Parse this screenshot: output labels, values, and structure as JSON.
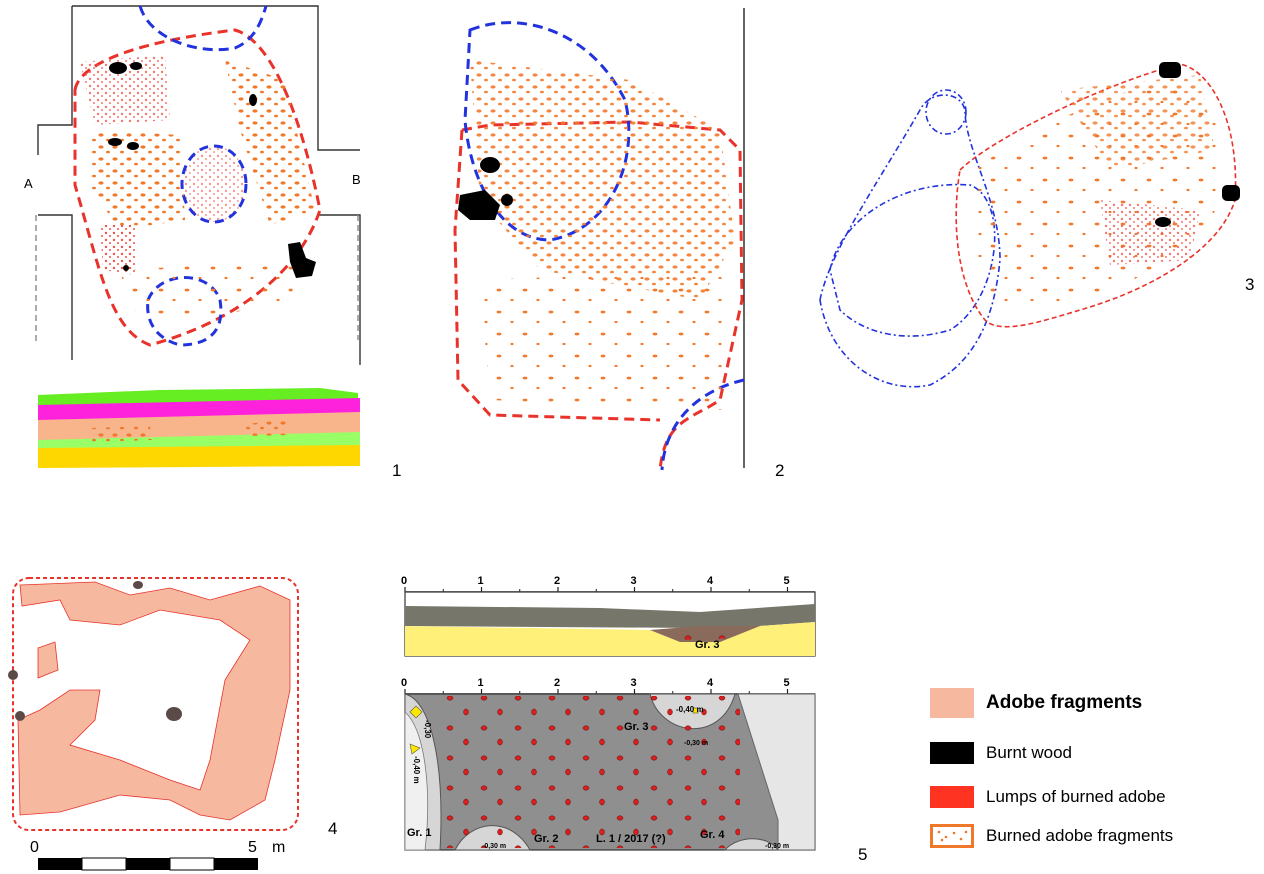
{
  "panels": {
    "p1": {
      "number": "1",
      "section_a": "A",
      "section_b": "B"
    },
    "p2": {
      "number": "2"
    },
    "p3": {
      "number": "3"
    },
    "p4": {
      "number": "4",
      "scale_start": "0",
      "scale_end": "5",
      "scale_unit": "m"
    },
    "p5": {
      "number": "5",
      "ruler_ticks": [
        "0",
        "1",
        "2",
        "3",
        "4",
        "5"
      ],
      "top_section_label": "Gr. 3",
      "plan_labels": {
        "gr1": "Gr. 1",
        "gr2": "Gr. 2",
        "gr3": "Gr. 3",
        "gr4": "Gr. 4",
        "layer": "L. 1 / 2017 (?)",
        "depth_gr3": "-0,40 m",
        "depth_gr3b": "-0,30 m",
        "depth_gr1a": "-0,30",
        "depth_gr1b": "-0,40 m",
        "depth_gr2": "-0,30 m",
        "depth_gr4": "-0,30 m"
      }
    }
  },
  "legend": {
    "items": [
      {
        "label": "Adobe fragments",
        "swatch": "#F7B8A0",
        "style": "bold"
      },
      {
        "label": "Burnt wood",
        "swatch": "#000000",
        "style": "normal"
      },
      {
        "label": "Lumps of burned adobe",
        "swatch": "#FF3322",
        "style": "normal"
      },
      {
        "label": "Burned adobe fragments",
        "swatch": "#F0782A",
        "style": "dotted"
      }
    ]
  },
  "colors": {
    "feature_outline_red": "#E8322A",
    "feature_outline_blue": "#2233DD",
    "burned_fragment": "#F0782A",
    "burned_lump": "#FF3322",
    "burnt_wood": "#000000",
    "adobe_fragment": "#F7B8A0"
  }
}
